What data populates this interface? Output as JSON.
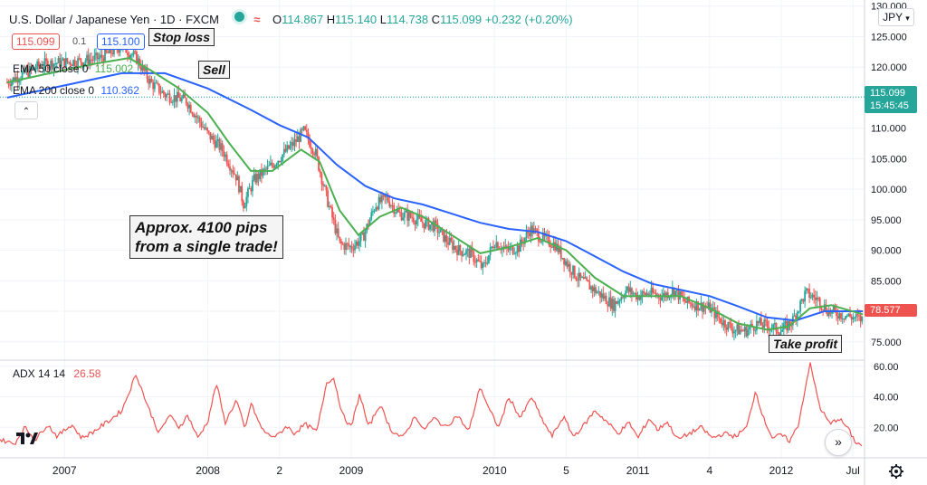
{
  "header": {
    "symbol_title": "U.S. Dollar / Japanese Yen · 1D · FXCM",
    "open_label": "O",
    "open": "114.867",
    "high_label": "H",
    "high": "115.140",
    "low_label": "L",
    "low": "114.738",
    "close_label": "C",
    "close": "115.099",
    "change": "+0.232 (+0.20%)",
    "bid": "115.099",
    "spread": "0.1",
    "ask": "115.100",
    "currency": "JPY",
    "wave_icon": "≈"
  },
  "indicators": {
    "ema50_label": "EMA 50 close 0",
    "ema50_value": "115.002",
    "ema200_label": "EMA 200 close 0",
    "ema200_value": "110.362",
    "adx_label": "ADX 14 14",
    "adx_value": "26.58"
  },
  "annotations": {
    "stop_loss": "Stop loss",
    "sell": "Sell",
    "pips_line1": "Approx. 4100 pips",
    "pips_line2": "from a single trade!",
    "take_profit": "Take profit"
  },
  "price_tags": {
    "current_price": "115.099",
    "countdown": "15:45:45",
    "last_price": "78.577"
  },
  "colors": {
    "candle_up": "#26a69a",
    "candle_down": "#ef5350",
    "ema50": "#4caf50",
    "ema200": "#2962ff",
    "adx": "#ef5350",
    "current_price_tag": "#26a69a",
    "last_price_tag": "#ef5350"
  },
  "chart_data": [
    {
      "type": "candlestick",
      "title": "U.S. Dollar / Japanese Yen · 1D · FXCM",
      "x_tick_labels": [
        "2007",
        "2008",
        "2",
        "2009",
        "2010",
        "5",
        "2011",
        "4",
        "2012",
        "Jul"
      ],
      "x_ticks_years": [
        2007.0,
        2008.0,
        2008.5,
        2009.0,
        2010.0,
        2010.5,
        2011.0,
        2011.5,
        2012.0,
        2012.5
      ],
      "ylim": [
        72,
        131
      ],
      "y_ticks": [
        "75.000",
        "80.000",
        "85.000",
        "90.000",
        "95.000",
        "100.000",
        "105.000",
        "110.000",
        "115.000",
        "120.000",
        "125.000",
        "130.000"
      ],
      "y_tick_values": [
        75,
        80,
        85,
        90,
        95,
        100,
        105,
        110,
        115,
        120,
        125,
        130
      ],
      "price_path": [
        [
          2006.6,
          117.5
        ],
        [
          2006.85,
          120.5
        ],
        [
          2007.1,
          121.0
        ],
        [
          2007.25,
          121.5
        ],
        [
          2007.4,
          123.5
        ],
        [
          2007.5,
          121.5
        ],
        [
          2007.6,
          117.5
        ],
        [
          2007.7,
          115.5
        ],
        [
          2007.85,
          114.5
        ],
        [
          2008.0,
          109.0
        ],
        [
          2008.1,
          106.5
        ],
        [
          2008.2,
          102.0
        ],
        [
          2008.25,
          97.5
        ],
        [
          2008.32,
          101.5
        ],
        [
          2008.45,
          104.0
        ],
        [
          2008.6,
          107.5
        ],
        [
          2008.67,
          109.5
        ],
        [
          2008.75,
          106.0
        ],
        [
          2008.83,
          98.5
        ],
        [
          2008.92,
          91.0
        ],
        [
          2009.0,
          90.5
        ],
        [
          2009.08,
          92.0
        ],
        [
          2009.17,
          97.5
        ],
        [
          2009.25,
          98.5
        ],
        [
          2009.33,
          96.0
        ],
        [
          2009.42,
          95.5
        ],
        [
          2009.5,
          94.5
        ],
        [
          2009.58,
          94.0
        ],
        [
          2009.67,
          91.5
        ],
        [
          2009.75,
          90.0
        ],
        [
          2009.83,
          89.5
        ],
        [
          2009.92,
          87.0
        ],
        [
          2010.0,
          91.5
        ],
        [
          2010.08,
          90.0
        ],
        [
          2010.17,
          90.5
        ],
        [
          2010.25,
          93.5
        ],
        [
          2010.33,
          92.0
        ],
        [
          2010.42,
          91.0
        ],
        [
          2010.5,
          88.0
        ],
        [
          2010.58,
          85.5
        ],
        [
          2010.67,
          84.0
        ],
        [
          2010.75,
          82.5
        ],
        [
          2010.83,
          81.0
        ],
        [
          2010.92,
          83.5
        ],
        [
          2011.0,
          82.5
        ],
        [
          2011.08,
          83.0
        ],
        [
          2011.17,
          82.5
        ],
        [
          2011.25,
          83.5
        ],
        [
          2011.33,
          81.5
        ],
        [
          2011.42,
          81.0
        ],
        [
          2011.5,
          80.5
        ],
        [
          2011.58,
          78.5
        ],
        [
          2011.67,
          77.0
        ],
        [
          2011.75,
          76.8
        ],
        [
          2011.83,
          78.0
        ],
        [
          2011.92,
          77.5
        ],
        [
          2012.0,
          76.8
        ],
        [
          2012.08,
          78.5
        ],
        [
          2012.17,
          83.0
        ],
        [
          2012.25,
          82.0
        ],
        [
          2012.33,
          80.0
        ],
        [
          2012.42,
          79.5
        ],
        [
          2012.5,
          79.0
        ],
        [
          2012.57,
          78.6
        ]
      ],
      "ema50_path": [
        [
          2006.6,
          117.5
        ],
        [
          2006.9,
          119.0
        ],
        [
          2007.2,
          120.5
        ],
        [
          2007.45,
          121.5
        ],
        [
          2007.6,
          119.5
        ],
        [
          2007.8,
          116.5
        ],
        [
          2008.0,
          112.5
        ],
        [
          2008.15,
          107.5
        ],
        [
          2008.3,
          103.0
        ],
        [
          2008.45,
          103.0
        ],
        [
          2008.65,
          106.5
        ],
        [
          2008.78,
          104.5
        ],
        [
          2008.92,
          96.5
        ],
        [
          2009.05,
          92.5
        ],
        [
          2009.2,
          95.5
        ],
        [
          2009.35,
          97.0
        ],
        [
          2009.5,
          95.5
        ],
        [
          2009.7,
          92.5
        ],
        [
          2009.9,
          89.5
        ],
        [
          2010.1,
          90.5
        ],
        [
          2010.3,
          92.0
        ],
        [
          2010.5,
          90.0
        ],
        [
          2010.7,
          85.5
        ],
        [
          2010.9,
          82.5
        ],
        [
          2011.1,
          82.5
        ],
        [
          2011.3,
          82.5
        ],
        [
          2011.5,
          80.5
        ],
        [
          2011.7,
          78.0
        ],
        [
          2011.9,
          77.0
        ],
        [
          2012.05,
          77.5
        ],
        [
          2012.2,
          80.5
        ],
        [
          2012.35,
          81.0
        ],
        [
          2012.57,
          79.5
        ]
      ],
      "ema200_path": [
        [
          2006.6,
          115.0
        ],
        [
          2007.0,
          117.0
        ],
        [
          2007.4,
          119.0
        ],
        [
          2007.7,
          119.0
        ],
        [
          2008.0,
          116.5
        ],
        [
          2008.3,
          113.0
        ],
        [
          2008.5,
          110.5
        ],
        [
          2008.7,
          108.5
        ],
        [
          2008.9,
          104.0
        ],
        [
          2009.1,
          100.5
        ],
        [
          2009.3,
          98.5
        ],
        [
          2009.5,
          97.5
        ],
        [
          2009.7,
          96.0
        ],
        [
          2009.9,
          94.5
        ],
        [
          2010.1,
          93.5
        ],
        [
          2010.3,
          93.0
        ],
        [
          2010.5,
          91.5
        ],
        [
          2010.7,
          89.0
        ],
        [
          2010.9,
          86.5
        ],
        [
          2011.1,
          84.5
        ],
        [
          2011.3,
          83.5
        ],
        [
          2011.5,
          82.5
        ],
        [
          2011.7,
          80.8
        ],
        [
          2011.9,
          79.0
        ],
        [
          2012.1,
          78.5
        ],
        [
          2012.3,
          80.0
        ],
        [
          2012.57,
          80.0
        ]
      ],
      "current_price": 115.099,
      "last_price": 78.577
    },
    {
      "type": "line",
      "title": "ADX 14 14",
      "ylim": [
        0,
        64
      ],
      "y_ticks": [
        "20.00",
        "40.00",
        "60.00"
      ],
      "y_tick_values": [
        20,
        40,
        60
      ],
      "adx_path": [
        [
          2006.55,
          12
        ],
        [
          2006.65,
          9
        ],
        [
          2006.72,
          20
        ],
        [
          2006.8,
          12
        ],
        [
          2006.88,
          22
        ],
        [
          2006.95,
          14
        ],
        [
          2007.05,
          22
        ],
        [
          2007.12,
          13
        ],
        [
          2007.2,
          17
        ],
        [
          2007.32,
          25
        ],
        [
          2007.4,
          31
        ],
        [
          2007.5,
          55
        ],
        [
          2007.58,
          34
        ],
        [
          2007.66,
          16
        ],
        [
          2007.73,
          28
        ],
        [
          2007.8,
          20
        ],
        [
          2007.86,
          28
        ],
        [
          2007.93,
          13
        ],
        [
          2008.0,
          24
        ],
        [
          2008.06,
          49
        ],
        [
          2008.12,
          23
        ],
        [
          2008.2,
          38
        ],
        [
          2008.26,
          18
        ],
        [
          2008.3,
          36
        ],
        [
          2008.37,
          20
        ],
        [
          2008.42,
          15
        ],
        [
          2008.48,
          14
        ],
        [
          2008.55,
          21
        ],
        [
          2008.6,
          16
        ],
        [
          2008.68,
          22
        ],
        [
          2008.76,
          17
        ],
        [
          2008.83,
          50
        ],
        [
          2008.88,
          52
        ],
        [
          2008.94,
          28
        ],
        [
          2009.0,
          20
        ],
        [
          2009.06,
          42
        ],
        [
          2009.12,
          20
        ],
        [
          2009.2,
          35
        ],
        [
          2009.28,
          18
        ],
        [
          2009.36,
          13
        ],
        [
          2009.45,
          28
        ],
        [
          2009.5,
          18
        ],
        [
          2009.58,
          26
        ],
        [
          2009.66,
          20
        ],
        [
          2009.74,
          28
        ],
        [
          2009.82,
          17
        ],
        [
          2009.9,
          47
        ],
        [
          2009.96,
          32
        ],
        [
          2010.03,
          20
        ],
        [
          2010.1,
          40
        ],
        [
          2010.18,
          26
        ],
        [
          2010.26,
          40
        ],
        [
          2010.32,
          27
        ],
        [
          2010.4,
          14
        ],
        [
          2010.48,
          27
        ],
        [
          2010.55,
          14
        ],
        [
          2010.62,
          21
        ],
        [
          2010.7,
          31
        ],
        [
          2010.78,
          24
        ],
        [
          2010.86,
          16
        ],
        [
          2010.94,
          23
        ],
        [
          2011.0,
          13
        ],
        [
          2011.08,
          26
        ],
        [
          2011.14,
          18
        ],
        [
          2011.2,
          24
        ],
        [
          2011.28,
          12
        ],
        [
          2011.36,
          16
        ],
        [
          2011.44,
          20
        ],
        [
          2011.52,
          13
        ],
        [
          2011.6,
          16
        ],
        [
          2011.68,
          14
        ],
        [
          2011.76,
          20
        ],
        [
          2011.82,
          44
        ],
        [
          2011.88,
          25
        ],
        [
          2011.94,
          13
        ],
        [
          2012.0,
          15
        ],
        [
          2012.06,
          11
        ],
        [
          2012.12,
          22
        ],
        [
          2012.2,
          62
        ],
        [
          2012.27,
          33
        ],
        [
          2012.34,
          22
        ],
        [
          2012.4,
          26
        ],
        [
          2012.46,
          20
        ],
        [
          2012.52,
          10
        ],
        [
          2012.57,
          8
        ]
      ],
      "current_value": 26.58
    }
  ]
}
